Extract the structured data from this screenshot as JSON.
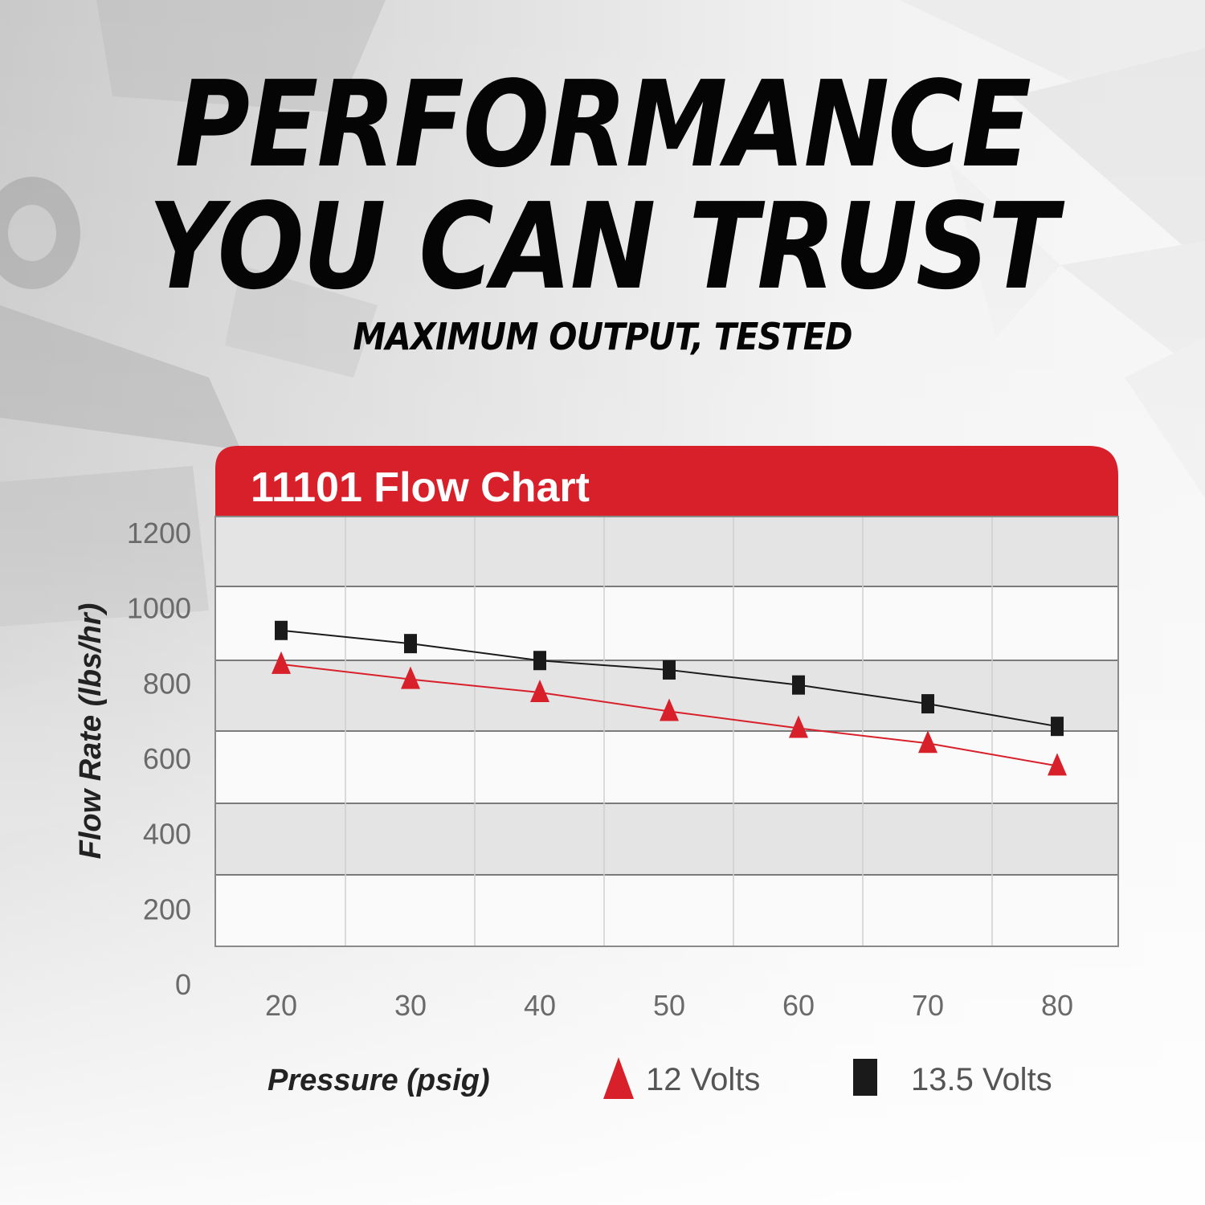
{
  "header": {
    "line1": "PERFORMANCE",
    "line2": "YOU CAN TRUST",
    "subtitle": "MAXIMUM OUTPUT, TESTED"
  },
  "colors": {
    "accent_red": "#d8202a",
    "series_black": "#1a1a1a",
    "band_gray": "#e4e4e4",
    "panel_white": "#fafafa",
    "grid": "#9a9a9a"
  },
  "chart_data": {
    "type": "line",
    "title": "11101 Flow Chart",
    "xlabel": "Pressure (psig)",
    "ylabel": "Flow Rate (lbs/hr)",
    "x": [
      20,
      30,
      40,
      50,
      60,
      70,
      80
    ],
    "x_ticks": [
      "20",
      "30",
      "40",
      "50",
      "60",
      "70",
      "80"
    ],
    "y_ticks": [
      "0",
      "200",
      "400",
      "600",
      "800",
      "1000",
      "1200"
    ],
    "ylim": [
      0,
      1200
    ],
    "grid": true,
    "legend_position": "bottom",
    "series": [
      {
        "name": "12 Volts",
        "marker": "triangle",
        "color": "#d8202a",
        "values": [
          850,
          810,
          775,
          725,
          680,
          640,
          580
        ]
      },
      {
        "name": "13.5 Volts",
        "marker": "square",
        "color": "#1a1a1a",
        "values": [
          940,
          905,
          860,
          835,
          795,
          745,
          685
        ]
      }
    ]
  }
}
